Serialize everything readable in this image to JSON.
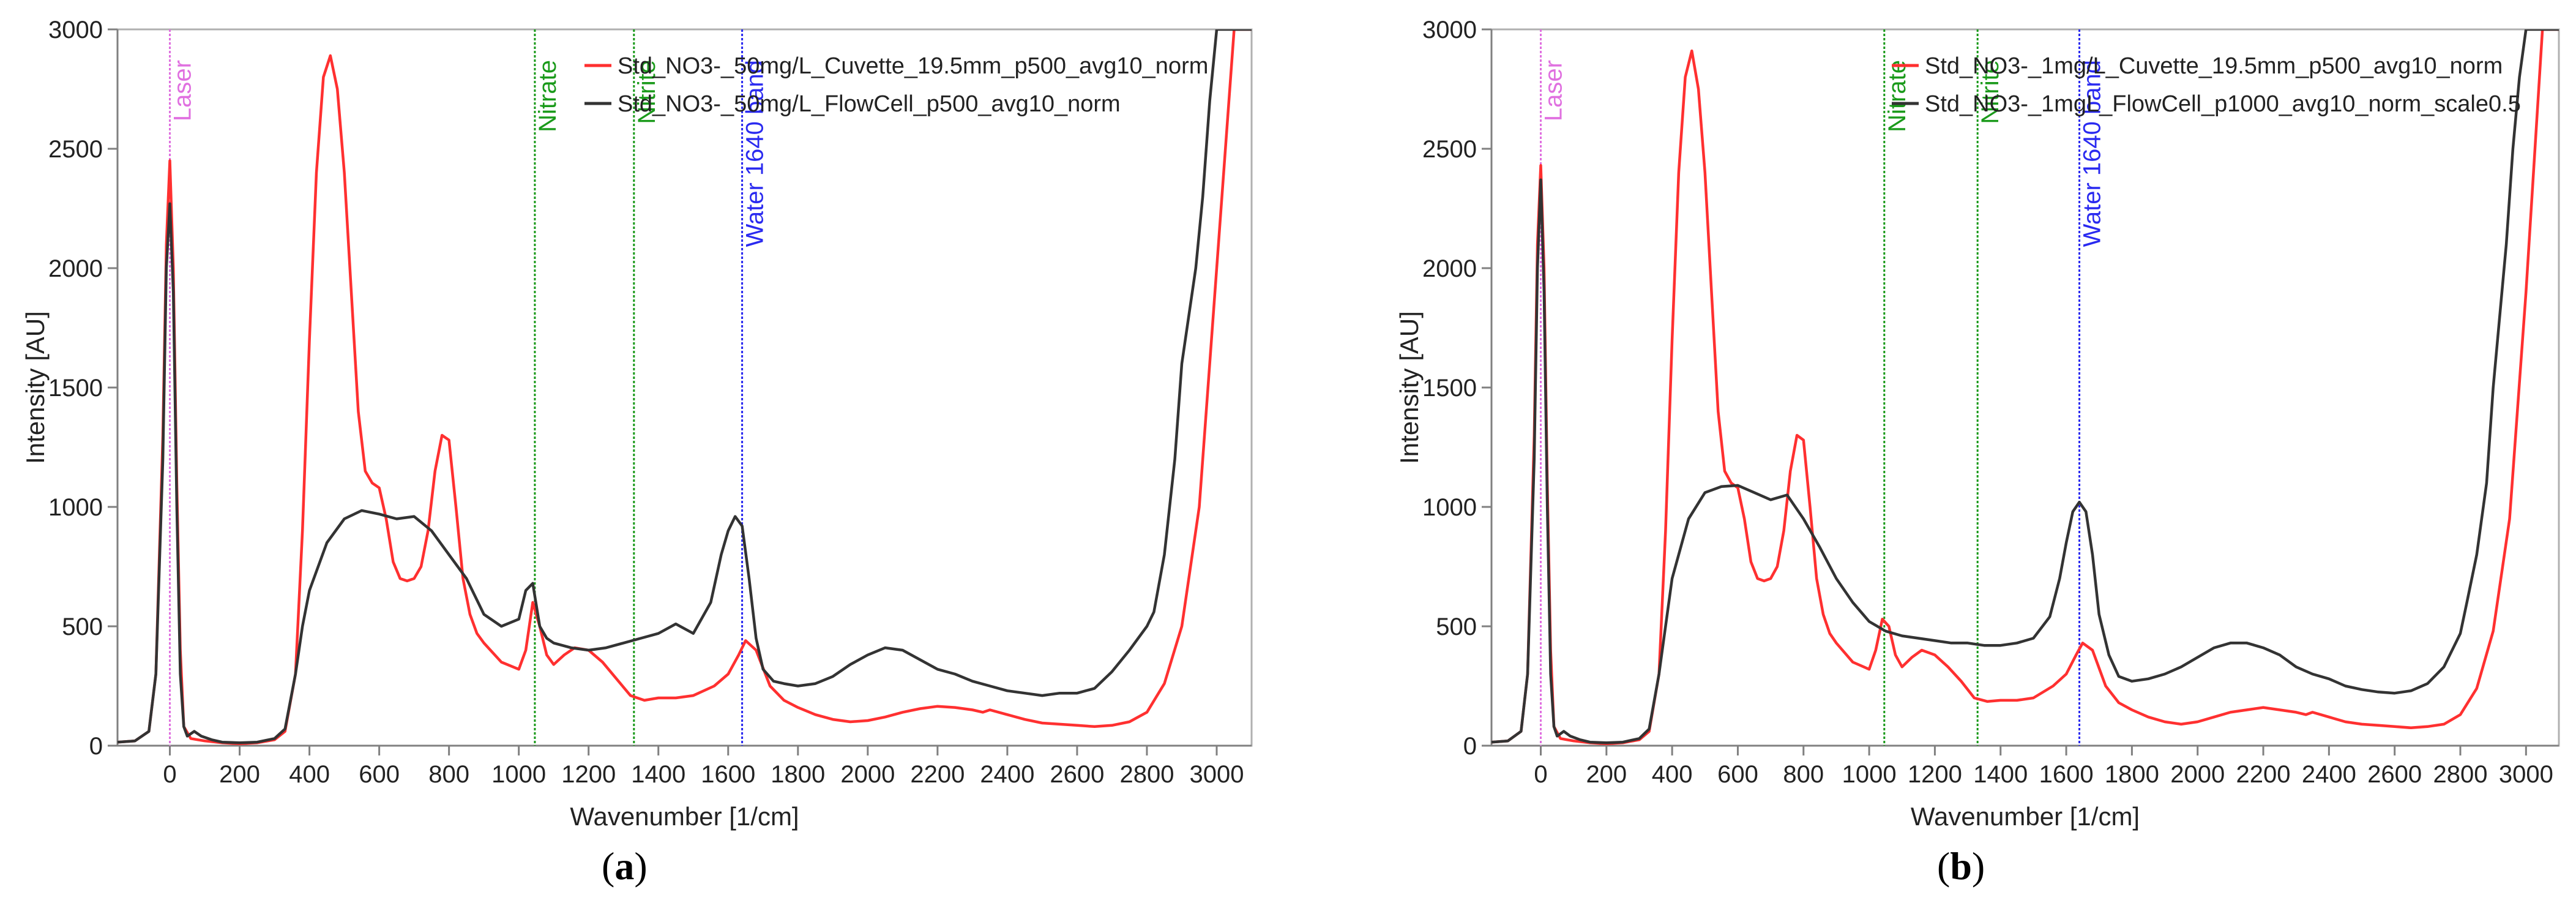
{
  "chart_data": [
    {
      "type": "line",
      "panel_label": "a",
      "xlabel": "Wavenumber [1/cm]",
      "ylabel": "Intensity [AU]",
      "xlim": [
        -150,
        3100
      ],
      "ylim": [
        0,
        3000
      ],
      "xticks": [
        0,
        200,
        400,
        600,
        800,
        1000,
        1200,
        1400,
        1600,
        1800,
        2000,
        2200,
        2400,
        2600,
        2800,
        3000
      ],
      "yticks": [
        0,
        500,
        1000,
        1500,
        2000,
        2500,
        3000
      ],
      "legend_position": "top-right",
      "markers": [
        {
          "label": "Laser",
          "x": 0,
          "color": "#e070e0"
        },
        {
          "label": "Nitrate",
          "x": 1046,
          "color": "#1a9a1a"
        },
        {
          "label": "Nitrite",
          "x": 1330,
          "color": "#1a9a1a"
        },
        {
          "label": "Water 1640 band",
          "x": 1640,
          "color": "#2a2af0"
        }
      ],
      "series": [
        {
          "name": "Std_NO3-_50mg/L_Cuvette_19.5mm_p500_avg10_norm",
          "color": "#ff3030",
          "x": [
            -150,
            -100,
            -60,
            -40,
            -20,
            -10,
            0,
            10,
            20,
            30,
            40,
            60,
            80,
            100,
            150,
            200,
            250,
            300,
            330,
            360,
            380,
            400,
            420,
            440,
            460,
            480,
            500,
            520,
            540,
            560,
            580,
            600,
            620,
            640,
            660,
            680,
            700,
            720,
            740,
            760,
            780,
            800,
            820,
            840,
            860,
            880,
            900,
            950,
            1000,
            1020,
            1040,
            1060,
            1080,
            1100,
            1130,
            1160,
            1200,
            1240,
            1280,
            1320,
            1360,
            1400,
            1450,
            1500,
            1560,
            1600,
            1630,
            1650,
            1680,
            1720,
            1760,
            1800,
            1850,
            1900,
            1950,
            2000,
            2050,
            2100,
            2150,
            2200,
            2250,
            2300,
            2330,
            2350,
            2400,
            2450,
            2500,
            2550,
            2600,
            2650,
            2700,
            2750,
            2800,
            2850,
            2900,
            2950,
            3000,
            3050,
            3100
          ],
          "values": [
            15,
            20,
            60,
            300,
            1300,
            2100,
            2450,
            2000,
            1100,
            400,
            80,
            30,
            25,
            20,
            12,
            8,
            12,
            25,
            60,
            300,
            900,
            1700,
            2400,
            2800,
            2890,
            2750,
            2400,
            1900,
            1400,
            1150,
            1100,
            1080,
            950,
            770,
            700,
            690,
            700,
            750,
            900,
            1150,
            1300,
            1280,
            1000,
            700,
            550,
            470,
            430,
            350,
            320,
            400,
            600,
            500,
            380,
            340,
            380,
            410,
            400,
            350,
            280,
            210,
            190,
            200,
            200,
            210,
            250,
            300,
            380,
            440,
            400,
            250,
            190,
            160,
            130,
            110,
            100,
            105,
            120,
            140,
            155,
            165,
            160,
            150,
            140,
            150,
            130,
            110,
            95,
            90,
            85,
            80,
            85,
            100,
            140,
            260,
            500,
            1000,
            2000,
            3000,
            3000
          ]
        },
        {
          "name": "Std_NO3-_50mg/L_FlowCell_p500_avg10_norm",
          "color": "#333333",
          "x": [
            -150,
            -100,
            -60,
            -40,
            -20,
            -10,
            0,
            10,
            20,
            30,
            40,
            50,
            70,
            90,
            120,
            150,
            200,
            250,
            300,
            330,
            360,
            380,
            400,
            450,
            500,
            550,
            600,
            650,
            700,
            750,
            800,
            850,
            900,
            950,
            1000,
            1020,
            1040,
            1060,
            1080,
            1100,
            1150,
            1200,
            1250,
            1300,
            1350,
            1400,
            1450,
            1500,
            1550,
            1580,
            1600,
            1620,
            1640,
            1660,
            1680,
            1700,
            1730,
            1760,
            1800,
            1850,
            1900,
            1950,
            2000,
            2050,
            2100,
            2150,
            2200,
            2250,
            2300,
            2350,
            2400,
            2450,
            2500,
            2550,
            2600,
            2650,
            2700,
            2750,
            2800,
            2820,
            2850,
            2880,
            2900,
            2920,
            2940,
            2960,
            2980,
            3000,
            3100
          ],
          "values": [
            15,
            20,
            60,
            300,
            1200,
            2000,
            2270,
            1900,
            1000,
            300,
            80,
            40,
            60,
            40,
            25,
            15,
            12,
            15,
            30,
            70,
            300,
            500,
            650,
            850,
            950,
            985,
            970,
            950,
            960,
            900,
            800,
            700,
            550,
            500,
            530,
            650,
            680,
            500,
            450,
            430,
            410,
            400,
            410,
            430,
            450,
            470,
            510,
            470,
            600,
            800,
            900,
            960,
            920,
            700,
            450,
            320,
            270,
            260,
            250,
            260,
            290,
            340,
            380,
            410,
            400,
            360,
            320,
            300,
            270,
            250,
            230,
            220,
            210,
            220,
            220,
            240,
            310,
            400,
            500,
            560,
            800,
            1200,
            1600,
            1800,
            2000,
            2300,
            2700,
            3000,
            3000
          ]
        }
      ]
    },
    {
      "type": "line",
      "panel_label": "b",
      "xlabel": "Wavenumber [1/cm]",
      "ylabel": "Intensity [AU]",
      "xlim": [
        -150,
        3100
      ],
      "ylim": [
        0,
        3000
      ],
      "xticks": [
        0,
        200,
        400,
        600,
        800,
        1000,
        1200,
        1400,
        1600,
        1800,
        2000,
        2200,
        2400,
        2600,
        2800,
        3000
      ],
      "yticks": [
        0,
        500,
        1000,
        1500,
        2000,
        2500,
        3000
      ],
      "legend_position": "top-right",
      "markers": [
        {
          "label": "Laser",
          "x": 0,
          "color": "#e070e0"
        },
        {
          "label": "Nitrate",
          "x": 1046,
          "color": "#1a9a1a"
        },
        {
          "label": "Nitrite",
          "x": 1330,
          "color": "#1a9a1a"
        },
        {
          "label": "Water 1640 band",
          "x": 1640,
          "color": "#2a2af0"
        }
      ],
      "series": [
        {
          "name": "Std_NO3-_1mg/L_Cuvette_19.5mm_p500_avg10_norm",
          "color": "#ff3030",
          "x": [
            -150,
            -100,
            -60,
            -40,
            -20,
            -10,
            0,
            10,
            20,
            30,
            40,
            60,
            80,
            100,
            150,
            200,
            250,
            300,
            330,
            360,
            380,
            400,
            420,
            440,
            460,
            480,
            500,
            520,
            540,
            560,
            580,
            600,
            620,
            640,
            660,
            680,
            700,
            720,
            740,
            760,
            780,
            800,
            820,
            840,
            860,
            880,
            900,
            950,
            1000,
            1020,
            1040,
            1060,
            1080,
            1100,
            1130,
            1160,
            1200,
            1240,
            1280,
            1320,
            1360,
            1400,
            1450,
            1500,
            1560,
            1600,
            1630,
            1650,
            1680,
            1720,
            1760,
            1800,
            1850,
            1900,
            1950,
            2000,
            2050,
            2100,
            2150,
            2200,
            2250,
            2300,
            2330,
            2350,
            2400,
            2450,
            2500,
            2550,
            2600,
            2650,
            2700,
            2750,
            2800,
            2850,
            2900,
            2950,
            3000,
            3050,
            3100
          ],
          "values": [
            15,
            20,
            60,
            300,
            1300,
            2100,
            2430,
            2000,
            1100,
            400,
            80,
            30,
            25,
            20,
            12,
            8,
            12,
            25,
            60,
            300,
            900,
            1700,
            2400,
            2800,
            2910,
            2750,
            2400,
            1900,
            1400,
            1150,
            1100,
            1080,
            950,
            770,
            700,
            690,
            700,
            750,
            900,
            1150,
            1300,
            1280,
            1000,
            700,
            550,
            470,
            430,
            350,
            320,
            400,
            530,
            500,
            380,
            330,
            370,
            400,
            380,
            330,
            270,
            200,
            185,
            190,
            190,
            200,
            250,
            300,
            380,
            430,
            400,
            250,
            180,
            150,
            120,
            100,
            90,
            100,
            120,
            140,
            150,
            160,
            150,
            140,
            130,
            140,
            120,
            100,
            90,
            85,
            80,
            75,
            80,
            90,
            130,
            240,
            480,
            950,
            1900,
            3000,
            3000
          ]
        },
        {
          "name": "Std_NO3-_1mgL_FlowCell_p1000_avg10_norm_scale0.5",
          "color": "#333333",
          "x": [
            -150,
            -100,
            -60,
            -40,
            -20,
            -10,
            0,
            10,
            20,
            30,
            40,
            50,
            70,
            90,
            120,
            150,
            200,
            250,
            300,
            330,
            360,
            380,
            400,
            450,
            500,
            550,
            600,
            650,
            700,
            750,
            800,
            850,
            900,
            950,
            1000,
            1050,
            1100,
            1150,
            1200,
            1250,
            1300,
            1350,
            1400,
            1450,
            1500,
            1550,
            1580,
            1600,
            1620,
            1640,
            1660,
            1680,
            1700,
            1730,
            1760,
            1800,
            1850,
            1900,
            1950,
            2000,
            2050,
            2100,
            2150,
            2200,
            2250,
            2300,
            2350,
            2400,
            2450,
            2500,
            2550,
            2600,
            2650,
            2700,
            2750,
            2800,
            2820,
            2850,
            2880,
            2900,
            2920,
            2940,
            2960,
            2980,
            3000,
            3100
          ],
          "values": [
            15,
            20,
            60,
            300,
            1200,
            2000,
            2370,
            1900,
            1000,
            300,
            80,
            40,
            60,
            40,
            25,
            15,
            12,
            15,
            30,
            70,
            300,
            500,
            700,
            950,
            1060,
            1085,
            1090,
            1060,
            1030,
            1050,
            950,
            830,
            700,
            600,
            520,
            480,
            460,
            450,
            440,
            430,
            430,
            420,
            420,
            430,
            450,
            540,
            700,
            850,
            980,
            1020,
            980,
            800,
            550,
            380,
            290,
            270,
            280,
            300,
            330,
            370,
            410,
            430,
            430,
            410,
            380,
            330,
            300,
            280,
            250,
            235,
            225,
            220,
            230,
            260,
            330,
            470,
            600,
            800,
            1100,
            1500,
            1800,
            2100,
            2500,
            2800,
            3000,
            3000
          ]
        }
      ]
    }
  ]
}
